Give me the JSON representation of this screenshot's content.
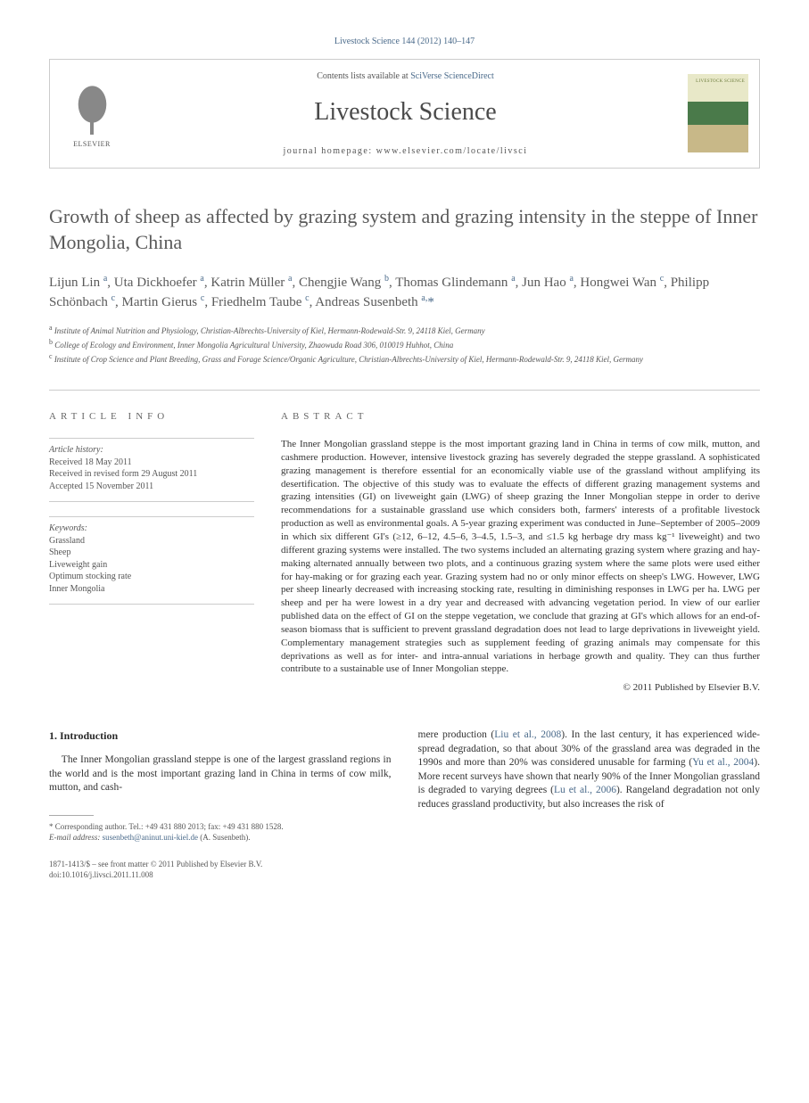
{
  "header": {
    "journal_ref": "Livestock Science 144 (2012) 140–147",
    "contents_prefix": "Contents lists available at ",
    "contents_link": "SciVerse ScienceDirect",
    "journal_name": "Livestock Science",
    "homepage_label": "journal homepage: www.elsevier.com/locate/livsci",
    "publisher_label": "ELSEVIER"
  },
  "title": "Growth of sheep as affected by grazing system and grazing intensity in the steppe of Inner Mongolia, China",
  "authors_html": "Lijun Lin <sup>a</sup>, Uta Dickhoefer <sup>a</sup>, Katrin Müller <sup>a</sup>, Chengjie Wang <sup>b</sup>, Thomas Glindemann <sup>a</sup>, Jun Hao <sup>a</sup>, Hongwei Wan <sup>c</sup>, Philipp Schönbach <sup>c</sup>, Martin Gierus <sup>c</sup>, Friedhelm Taube <sup>c</sup>, Andreas Susenbeth <sup>a,</sup><span class='star'>*</span>",
  "affiliations": {
    "a": "Institute of Animal Nutrition and Physiology, Christian-Albrechts-University of Kiel, Hermann-Rodewald-Str. 9, 24118 Kiel, Germany",
    "b": "College of Ecology and Environment, Inner Mongolia Agricultural University, Zhaowuda Road 306, 010019 Huhhot, China",
    "c": "Institute of Crop Science and Plant Breeding, Grass and Forage Science/Organic Agriculture, Christian-Albrechts-University of Kiel, Hermann-Rodewald-Str. 9, 24118 Kiel, Germany"
  },
  "article_info": {
    "heading": "ARTICLE INFO",
    "history_label": "Article history:",
    "received": "Received 18 May 2011",
    "revised": "Received in revised form 29 August 2011",
    "accepted": "Accepted 15 November 2011",
    "keywords_label": "Keywords:",
    "keywords": [
      "Grassland",
      "Sheep",
      "Liveweight gain",
      "Optimum stocking rate",
      "Inner Mongolia"
    ]
  },
  "abstract": {
    "heading": "ABSTRACT",
    "text": "The Inner Mongolian grassland steppe is the most important grazing land in China in terms of cow milk, mutton, and cashmere production. However, intensive livestock grazing has severely degraded the steppe grassland. A sophisticated grazing management is therefore essential for an economically viable use of the grassland without amplifying its desertification. The objective of this study was to evaluate the effects of different grazing management systems and grazing intensities (GI) on liveweight gain (LWG) of sheep grazing the Inner Mongolian steppe in order to derive recommendations for a sustainable grassland use which considers both, farmers' interests of a profitable livestock production as well as environmental goals. A 5-year grazing experiment was conducted in June–September of 2005–2009 in which six different GI's (≥12, 6–12, 4.5–6, 3–4.5, 1.5–3, and ≤1.5 kg herbage dry mass kg⁻¹ liveweight) and two different grazing systems were installed. The two systems included an alternating grazing system where grazing and hay-making alternated annually between two plots, and a continuous grazing system where the same plots were used either for hay-making or for grazing each year. Grazing system had no or only minor effects on sheep's LWG. However, LWG per sheep linearly decreased with increasing stocking rate, resulting in diminishing responses in LWG per ha. LWG per sheep and per ha were lowest in a dry year and decreased with advancing vegetation period. In view of our earlier published data on the effect of GI on the steppe vegetation, we conclude that grazing at GI's which allows for an end-of-season biomass that is sufficient to prevent grassland degradation does not lead to large deprivations in liveweight yield. Complementary management strategies such as supplement feeding of grazing animals may compensate for this deprivations as well as for inter- and intra-annual variations in herbage growth and quality. They can thus further contribute to a sustainable use of Inner Mongolian steppe.",
    "copyright": "© 2011 Published by Elsevier B.V."
  },
  "intro": {
    "heading": "1. Introduction",
    "col1": "The Inner Mongolian grassland steppe is one of the largest grassland regions in the world and is the most important grazing land in China in terms of cow milk, mutton, and cash-",
    "col2_html": "mere production (<span class='link'>Liu et al., 2008</span>). In the last century, it has experienced wide-spread degradation, so that about 30% of the grassland area was degraded in the 1990s and more than 20% was considered unusable for farming (<span class='link'>Yu et al., 2004</span>). More recent surveys have shown that nearly 90% of the Inner Mongolian grassland is degraded to varying degrees (<span class='link'>Lu et al., 2006</span>). Rangeland degradation not only reduces grassland productivity, but also increases the risk of"
  },
  "footnote": {
    "corr": "* Corresponding author. Tel.: +49 431 880 2013; fax: +49 431 880 1528.",
    "email_label": "E-mail address: ",
    "email": "susenbeth@aninut.uni-kiel.de",
    "email_suffix": " (A. Susenbeth)."
  },
  "footer": {
    "issn": "1871-1413/$ – see front matter © 2011 Published by Elsevier B.V.",
    "doi": "doi:10.1016/j.livsci.2011.11.008"
  },
  "colors": {
    "link": "#4a6a8a",
    "text": "#333333",
    "heading": "#5a5a5a",
    "bg": "#ffffff"
  }
}
